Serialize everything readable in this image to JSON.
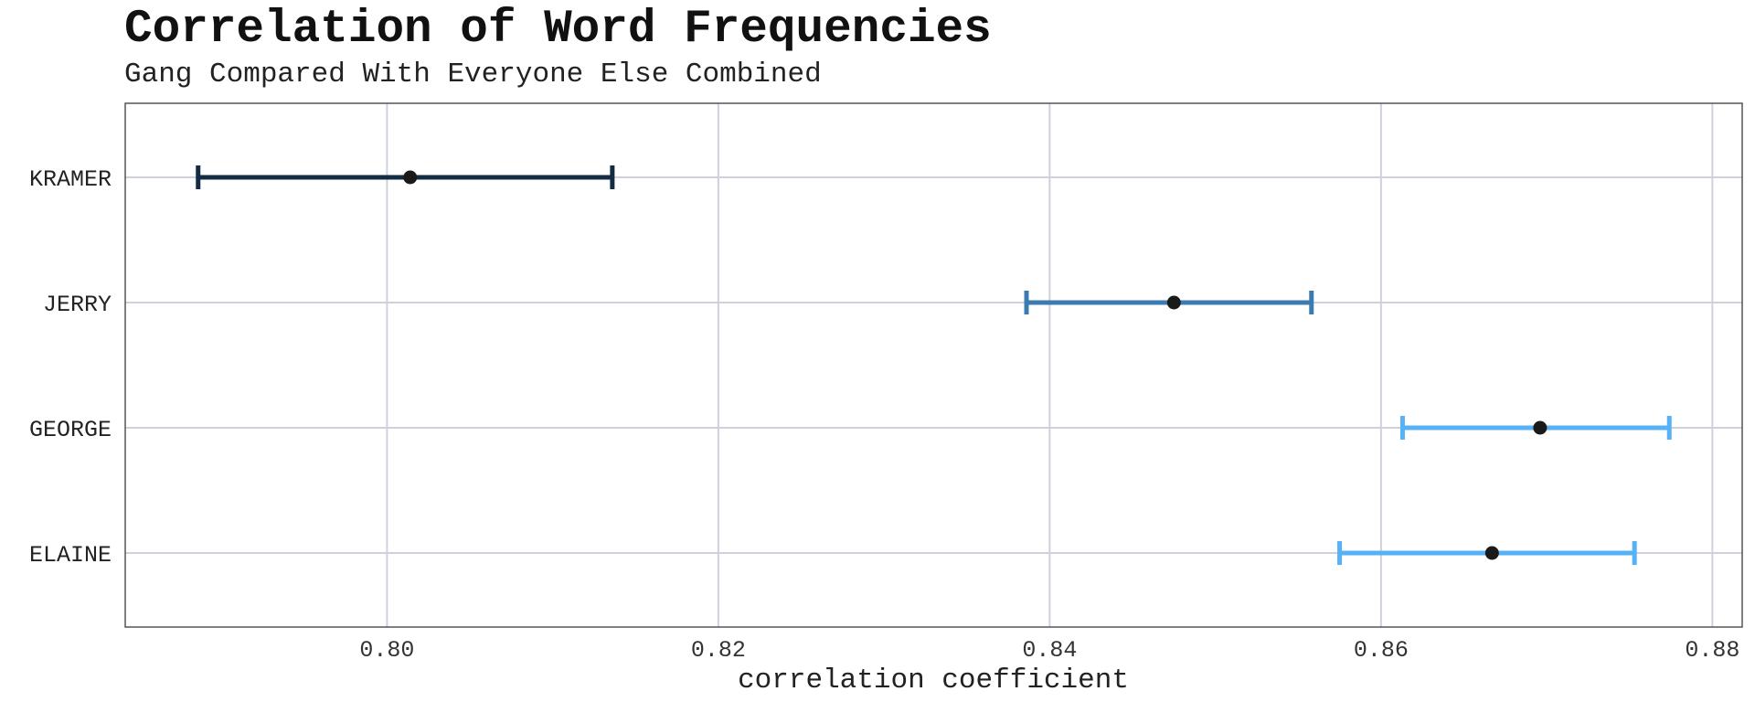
{
  "chart_data": {
    "type": "errorbar",
    "title": "Correlation of Word Frequencies",
    "subtitle": "Gang Compared With Everyone Else Combined",
    "xlabel": "correlation coefficient",
    "ylabel": "",
    "xlim": [
      0.7842,
      0.8818
    ],
    "xticks": [
      0.8,
      0.82,
      0.84,
      0.86,
      0.88
    ],
    "xtick_labels": [
      "0.80",
      "0.82",
      "0.84",
      "0.86",
      "0.88"
    ],
    "grid": true,
    "legend": "none",
    "categories": [
      "KRAMER",
      "JERRY",
      "GEORGE",
      "ELAINE"
    ],
    "points": [
      {
        "label": "KRAMER",
        "estimate": 0.8014,
        "low": 0.7886,
        "high": 0.8136,
        "color": "#132b43"
      },
      {
        "label": "JERRY",
        "estimate": 0.8475,
        "low": 0.8386,
        "high": 0.8558,
        "color": "#3b7bb2"
      },
      {
        "label": "GEORGE",
        "estimate": 0.8696,
        "low": 0.8613,
        "high": 0.8774,
        "color": "#56b1f7"
      },
      {
        "label": "ELAINE",
        "estimate": 0.8667,
        "low": 0.8575,
        "high": 0.8753,
        "color": "#56b1f7"
      }
    ],
    "colors": {
      "gridline": "#d0d0dc",
      "panel_border": "#555555",
      "point": "#1a1a1a"
    }
  }
}
